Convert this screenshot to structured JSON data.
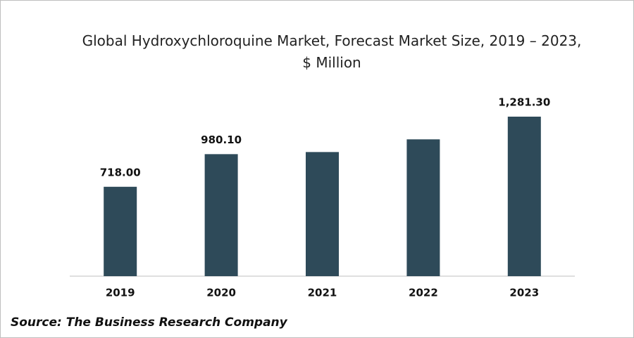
{
  "chart_data": {
    "type": "bar",
    "title": "Global Hydroxychloroquine Market, Forecast Market Size, 2019 – 2023, $ Million",
    "source": "Source: The Business Research Company",
    "categories": [
      "2019",
      "2020",
      "2021",
      "2022",
      "2023"
    ],
    "values": [
      718.0,
      980.1,
      997,
      1099,
      1281.3
    ],
    "value_labels": [
      "718.00",
      "980.10",
      null,
      null,
      "1,281.30"
    ],
    "color": "#2e4a59"
  }
}
